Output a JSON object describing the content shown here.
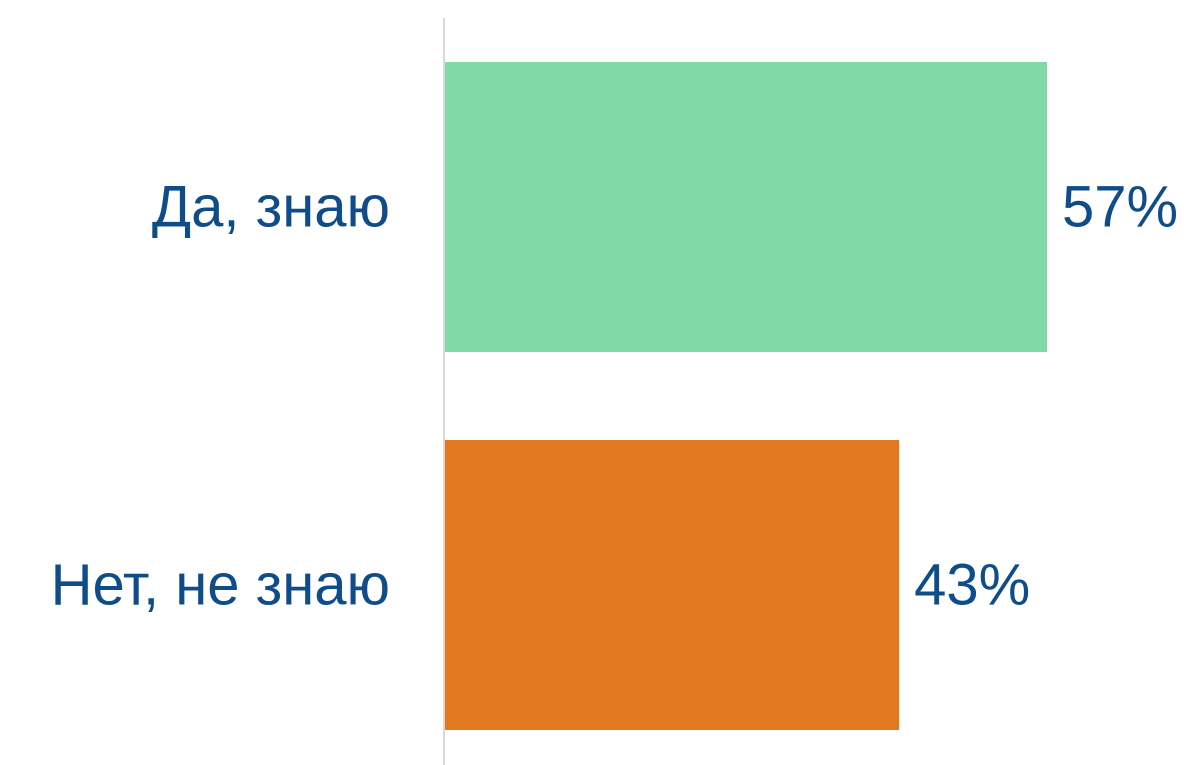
{
  "chart_data": {
    "type": "bar",
    "orientation": "horizontal",
    "categories": [
      "Да, знаю",
      "Нет, не знаю"
    ],
    "values": [
      57,
      43
    ],
    "value_labels": [
      "57%",
      "43%"
    ],
    "unit": "%",
    "xlim": [
      0,
      76
    ],
    "bar_colors": [
      "#82d9a8",
      "#e37a22"
    ],
    "label_color": "#0f4c8a",
    "axis_color": "#d9d9d9",
    "grid": false,
    "legend": "none"
  }
}
